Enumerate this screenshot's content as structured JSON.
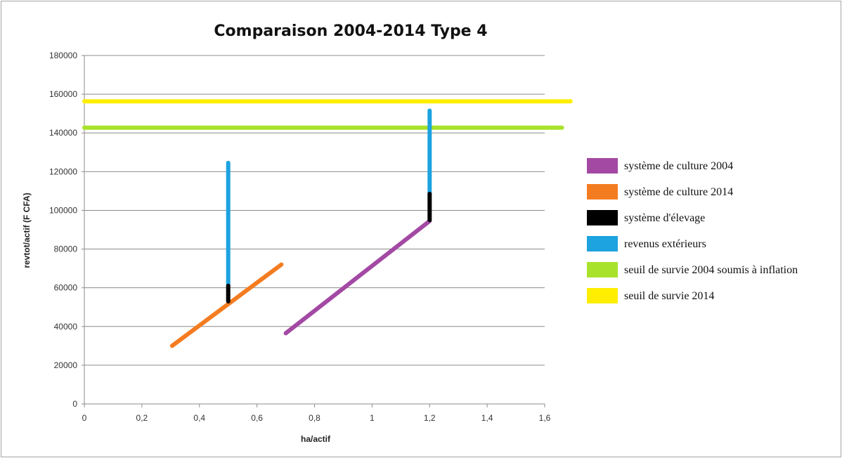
{
  "chart_data": {
    "type": "line",
    "title": "Comparaison 2004-2014 Type 4",
    "xlabel": "ha/actif",
    "ylabel": "revtot/actif (F CFA)",
    "xlim": [
      0,
      1.6
    ],
    "ylim": [
      0,
      180000
    ],
    "x_ticks": [
      "0",
      "0,2",
      "0,4",
      "0,6",
      "0,8",
      "1",
      "1,2",
      "1,4",
      "1,6"
    ],
    "y_ticks": [
      "0",
      "20000",
      "40000",
      "60000",
      "80000",
      "100000",
      "120000",
      "140000",
      "160000",
      "180000"
    ],
    "grid": "horizontal",
    "legend_position": "right",
    "series": [
      {
        "name": "système de culture 2004",
        "color": "#a349a4",
        "points": [
          [
            0.7,
            36500
          ],
          [
            1.2,
            94500
          ]
        ]
      },
      {
        "name": "système de culture 2014",
        "color": "#f47c20",
        "points": [
          [
            0.305,
            30000
          ],
          [
            0.685,
            72000
          ]
        ]
      },
      {
        "name": "système d'élevage",
        "color": "#000000",
        "segments": [
          [
            [
              0.5,
              53000
            ],
            [
              0.5,
              61000
            ]
          ],
          [
            [
              1.2,
              95000
            ],
            [
              1.2,
              108500
            ]
          ]
        ]
      },
      {
        "name": "revenus extérieurs",
        "color": "#1ca3e0",
        "segments": [
          [
            [
              0.5,
              61000
            ],
            [
              0.5,
              124500
            ]
          ],
          [
            [
              1.2,
              108500
            ],
            [
              1.2,
              151500
            ]
          ]
        ]
      },
      {
        "name": "seuil de survie 2004 soumis à inflation",
        "color": "#a8e22a",
        "points": [
          [
            0,
            142700
          ],
          [
            1.66,
            142700
          ]
        ]
      },
      {
        "name": "seuil de survie 2014",
        "color": "#ffee00",
        "points": [
          [
            0,
            156300
          ],
          [
            1.69,
            156300
          ]
        ]
      }
    ]
  }
}
